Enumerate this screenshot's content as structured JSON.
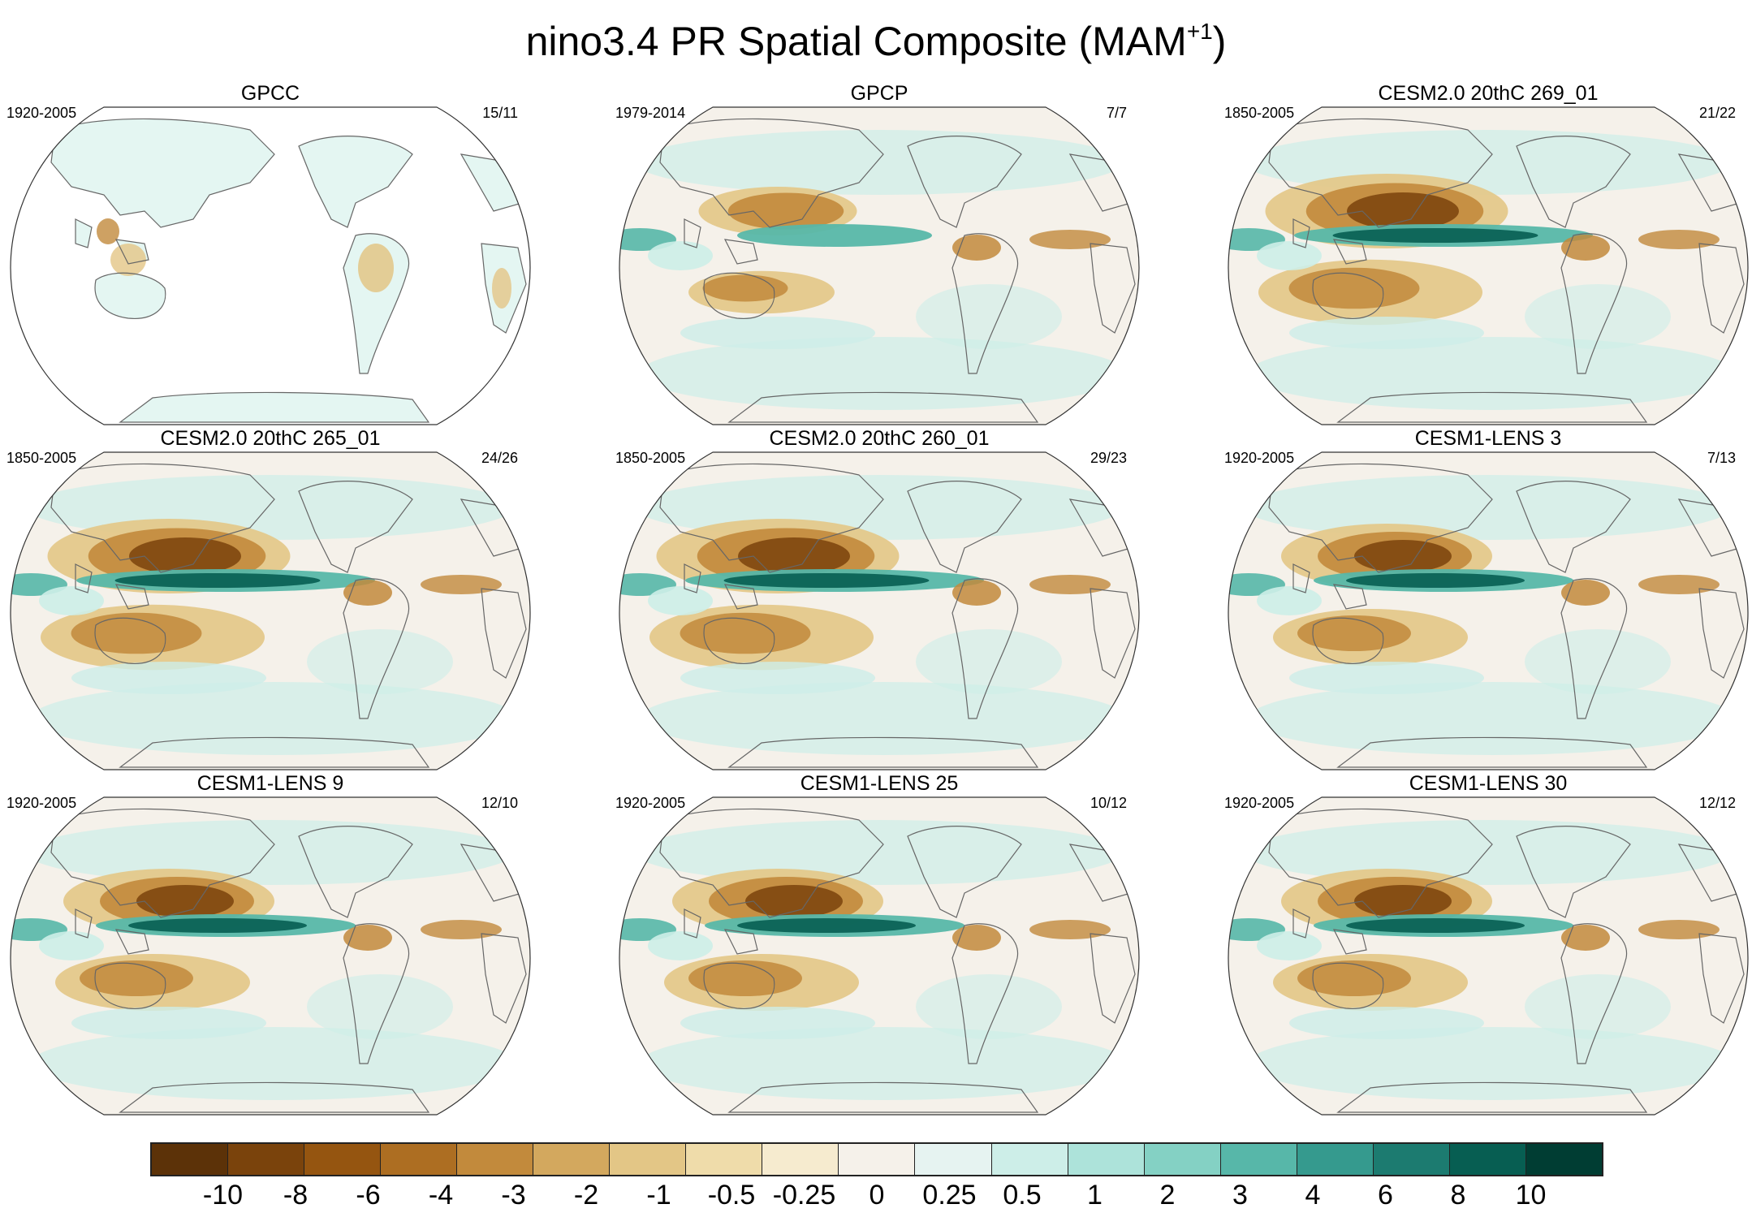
{
  "title": {
    "text": "nino3.4 PR Spatial Composite (MAM",
    "superscript": "+1",
    "closing": ")"
  },
  "panels": [
    {
      "name": "GPCC",
      "period": "1920-2005",
      "count": "15/11",
      "style": "obs-land"
    },
    {
      "name": "GPCP",
      "period": "1979-2014",
      "count": "7/7",
      "style": "obs"
    },
    {
      "name": "CESM2.0 20thC 269_01",
      "period": "1850-2005",
      "count": "21/22",
      "style": "model-strong"
    },
    {
      "name": "CESM2.0 20thC 265_01",
      "period": "1850-2005",
      "count": "24/26",
      "style": "model-strong"
    },
    {
      "name": "CESM2.0 20thC 260_01",
      "period": "1850-2005",
      "count": "29/23",
      "style": "model-strong"
    },
    {
      "name": "CESM1-LENS 3",
      "period": "1920-2005",
      "count": "7/13",
      "style": "model"
    },
    {
      "name": "CESM1-LENS 9",
      "period": "1920-2005",
      "count": "12/10",
      "style": "model"
    },
    {
      "name": "CESM1-LENS 25",
      "period": "1920-2005",
      "count": "10/12",
      "style": "model"
    },
    {
      "name": "CESM1-LENS 30",
      "period": "1920-2005",
      "count": "12/12",
      "style": "model"
    }
  ],
  "colorbar": {
    "labels": [
      "-10",
      "-8",
      "-6",
      "-4",
      "-3",
      "-2",
      "-1",
      "-0.5",
      "-0.25",
      "0",
      "0.25",
      "0.5",
      "1",
      "2",
      "3",
      "4",
      "6",
      "8",
      "10"
    ],
    "colors": [
      "#5c3208",
      "#7a430c",
      "#955510",
      "#ad6e22",
      "#c28a3c",
      "#d3a85e",
      "#e3c686",
      "#efdcaa",
      "#f6ebcf",
      "#f5f1ea",
      "#e6f3f1",
      "#cdeee8",
      "#ade3da",
      "#84d1c4",
      "#57b7a9",
      "#359a8e",
      "#1c7b70",
      "#075e52",
      "#003d33"
    ]
  },
  "palette": {
    "dry_strong": "#7a430c",
    "dry_mid": "#c28a3c",
    "dry_light": "#e3c686",
    "neutral": "#f5f1ea",
    "wet_light": "#cdeee8",
    "wet_mid": "#57b7a9",
    "wet_strong": "#075e52",
    "coast": "#666666"
  }
}
